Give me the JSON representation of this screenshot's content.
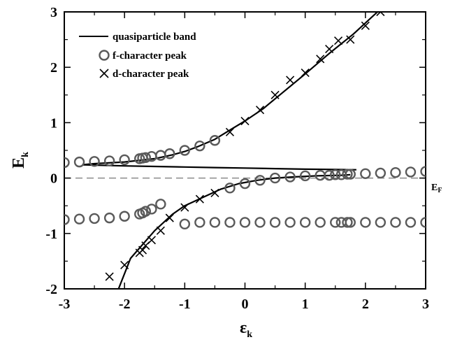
{
  "chart_data": {
    "type": "scatter",
    "xlabel": "ε",
    "xlabel_sub": "k",
    "ylabel": "E",
    "ylabel_sub": "k",
    "xlim": [
      -3,
      3
    ],
    "ylim": [
      -2,
      3
    ],
    "xticks": [
      "-3",
      "-2",
      "-1",
      "0",
      "1",
      "2",
      "3"
    ],
    "yticks": [
      "-2",
      "-1",
      "0",
      "1",
      "2",
      "3"
    ],
    "fermi_label": "E",
    "fermi_label_sub": "F",
    "fermi_level": 0,
    "grid": false,
    "legend_position": "top-left",
    "legend": [
      {
        "marker": "line",
        "label": "quasiparticle band"
      },
      {
        "marker": "circle",
        "label": "f-character peak"
      },
      {
        "marker": "cross",
        "label": "d-character peak"
      }
    ],
    "series": [
      {
        "name": "quasiparticle band",
        "kind": "line",
        "segments": [
          [
            [
              -2.1,
              -2.0
            ],
            [
              -1.9,
              -1.45
            ],
            [
              -1.5,
              -0.95
            ],
            [
              -1.2,
              -0.65
            ],
            [
              -1.0,
              -0.5
            ],
            [
              -0.7,
              -0.35
            ],
            [
              -0.4,
              -0.2
            ],
            [
              -0.1,
              -0.1
            ],
            [
              0.2,
              -0.04
            ],
            [
              0.5,
              0.0
            ],
            [
              0.8,
              0.02
            ],
            [
              1.2,
              0.04
            ],
            [
              1.6,
              0.05
            ],
            [
              1.75,
              0.06
            ]
          ],
          [
            [
              -2.7,
              0.24
            ],
            [
              -2.0,
              0.22
            ],
            [
              -1.5,
              0.21
            ],
            [
              -1.0,
              0.2
            ],
            [
              -0.5,
              0.19
            ],
            [
              0.0,
              0.18
            ],
            [
              0.5,
              0.17
            ],
            [
              1.0,
              0.16
            ],
            [
              1.5,
              0.155
            ],
            [
              1.85,
              0.15
            ]
          ],
          [
            [
              -2.7,
              0.24
            ],
            [
              -2.5,
              0.26
            ],
            [
              -2.0,
              0.29
            ],
            [
              -1.5,
              0.35
            ],
            [
              -1.2,
              0.42
            ],
            [
              -1.0,
              0.48
            ],
            [
              -0.8,
              0.56
            ],
            [
              -0.5,
              0.7
            ],
            [
              -0.2,
              0.9
            ],
            [
              0.0,
              1.03
            ],
            [
              0.3,
              1.25
            ],
            [
              0.6,
              1.52
            ],
            [
              1.0,
              1.88
            ],
            [
              1.4,
              2.25
            ],
            [
              1.8,
              2.6
            ],
            [
              2.2,
              3.0
            ]
          ]
        ]
      },
      {
        "name": "f-character peak",
        "kind": "circle",
        "points": [
          [
            -3.0,
            0.28
          ],
          [
            -2.75,
            0.29
          ],
          [
            -2.5,
            0.3
          ],
          [
            -2.25,
            0.31
          ],
          [
            -2.0,
            0.33
          ],
          [
            -1.75,
            0.35
          ],
          [
            -1.7,
            0.36
          ],
          [
            -1.65,
            0.37
          ],
          [
            -1.55,
            0.39
          ],
          [
            -1.4,
            0.41
          ],
          [
            -1.25,
            0.44
          ],
          [
            -1.0,
            0.5
          ],
          [
            -0.75,
            0.58
          ],
          [
            -0.5,
            0.68
          ],
          [
            -3.0,
            -0.75
          ],
          [
            -2.75,
            -0.74
          ],
          [
            -2.5,
            -0.73
          ],
          [
            -2.25,
            -0.72
          ],
          [
            -2.0,
            -0.69
          ],
          [
            -1.75,
            -0.65
          ],
          [
            -1.7,
            -0.63
          ],
          [
            -1.65,
            -0.6
          ],
          [
            -1.55,
            -0.56
          ],
          [
            -1.4,
            -0.47
          ],
          [
            -1.0,
            -0.83
          ],
          [
            -0.75,
            -0.8
          ],
          [
            -0.5,
            -0.8
          ],
          [
            -0.25,
            -0.8
          ],
          [
            0.0,
            -0.8
          ],
          [
            0.25,
            -0.8
          ],
          [
            0.5,
            -0.8
          ],
          [
            0.75,
            -0.8
          ],
          [
            1.0,
            -0.8
          ],
          [
            1.25,
            -0.8
          ],
          [
            1.5,
            -0.8
          ],
          [
            1.6,
            -0.8
          ],
          [
            1.7,
            -0.8
          ],
          [
            1.75,
            -0.8
          ],
          [
            2.0,
            -0.8
          ],
          [
            2.25,
            -0.8
          ],
          [
            2.5,
            -0.8
          ],
          [
            2.75,
            -0.8
          ],
          [
            3.0,
            -0.8
          ],
          [
            -0.25,
            -0.18
          ],
          [
            0.0,
            -0.1
          ],
          [
            0.25,
            -0.04
          ],
          [
            0.5,
            0.0
          ],
          [
            0.75,
            0.02
          ],
          [
            1.0,
            0.04
          ],
          [
            1.25,
            0.05
          ],
          [
            1.4,
            0.05
          ],
          [
            1.5,
            0.06
          ],
          [
            1.6,
            0.06
          ],
          [
            1.7,
            0.07
          ],
          [
            1.75,
            0.07
          ],
          [
            2.0,
            0.08
          ],
          [
            2.25,
            0.09
          ],
          [
            2.5,
            0.1
          ],
          [
            2.75,
            0.11
          ],
          [
            3.0,
            0.12
          ]
        ]
      },
      {
        "name": "d-character peak",
        "kind": "cross",
        "points": [
          [
            -2.25,
            -1.78
          ],
          [
            -2.0,
            -1.57
          ],
          [
            -1.75,
            -1.35
          ],
          [
            -1.7,
            -1.3
          ],
          [
            -1.65,
            -1.22
          ],
          [
            -1.55,
            -1.12
          ],
          [
            -1.4,
            -0.95
          ],
          [
            -1.25,
            -0.72
          ],
          [
            -1.0,
            -0.53
          ],
          [
            -0.75,
            -0.38
          ],
          [
            -0.5,
            -0.27
          ],
          [
            -0.25,
            0.83
          ],
          [
            0.0,
            1.03
          ],
          [
            0.25,
            1.23
          ],
          [
            0.5,
            1.5
          ],
          [
            0.75,
            1.77
          ],
          [
            1.0,
            1.9
          ],
          [
            1.25,
            2.15
          ],
          [
            1.4,
            2.33
          ],
          [
            1.55,
            2.48
          ],
          [
            1.75,
            2.5
          ],
          [
            2.0,
            2.75
          ],
          [
            2.25,
            3.0
          ]
        ]
      }
    ]
  }
}
